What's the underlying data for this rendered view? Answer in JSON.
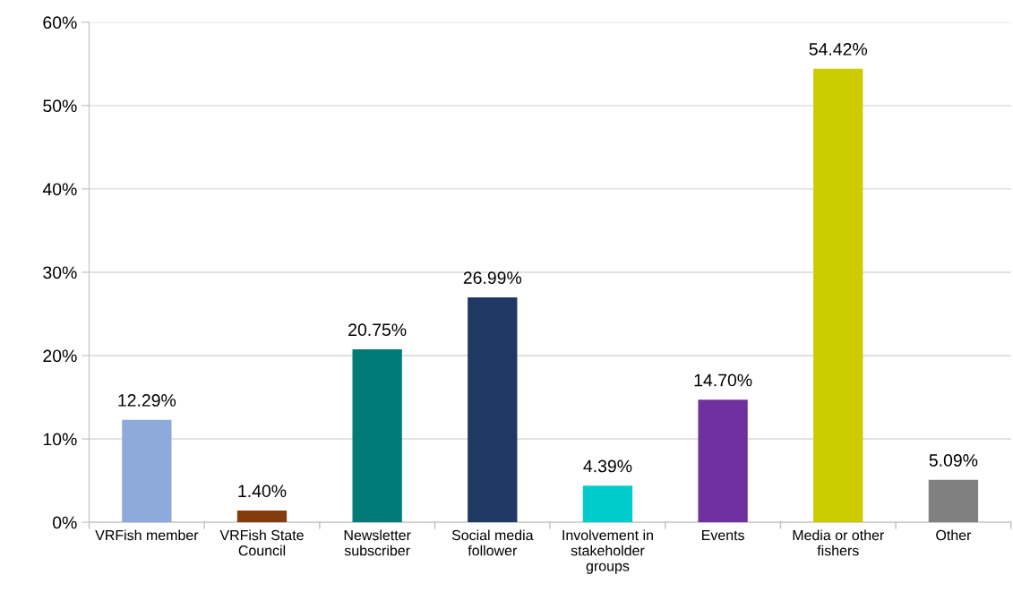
{
  "chart_data": {
    "type": "bar",
    "categories": [
      "VRFish member",
      "VRFish State\nCouncil",
      "Newsletter\nsubscriber",
      "Social media\nfollower",
      "Involvement in\nstakeholder\ngroups",
      "Events",
      "Media or other\nfishers",
      "Other"
    ],
    "values": [
      12.29,
      1.4,
      20.75,
      26.99,
      4.39,
      14.7,
      54.42,
      5.09
    ],
    "colors": [
      "#8eaadb",
      "#843c0c",
      "#007b78",
      "#203864",
      "#00cccc",
      "#7030a0",
      "#cccc00",
      "#808080"
    ],
    "value_labels": [
      "12.29%",
      "1.40%",
      "20.75%",
      "26.99%",
      "4.39%",
      "14.70%",
      "54.42%",
      "5.09%"
    ],
    "ylim": [
      0,
      60
    ],
    "yticks": [
      {
        "value": 0,
        "label": "0%"
      },
      {
        "value": 10,
        "label": "10%"
      },
      {
        "value": 20,
        "label": "20%"
      },
      {
        "value": 30,
        "label": "30%"
      },
      {
        "value": 40,
        "label": "40%"
      },
      {
        "value": 50,
        "label": "50%"
      },
      {
        "value": 60,
        "label": "60%"
      }
    ],
    "grid": "y"
  }
}
